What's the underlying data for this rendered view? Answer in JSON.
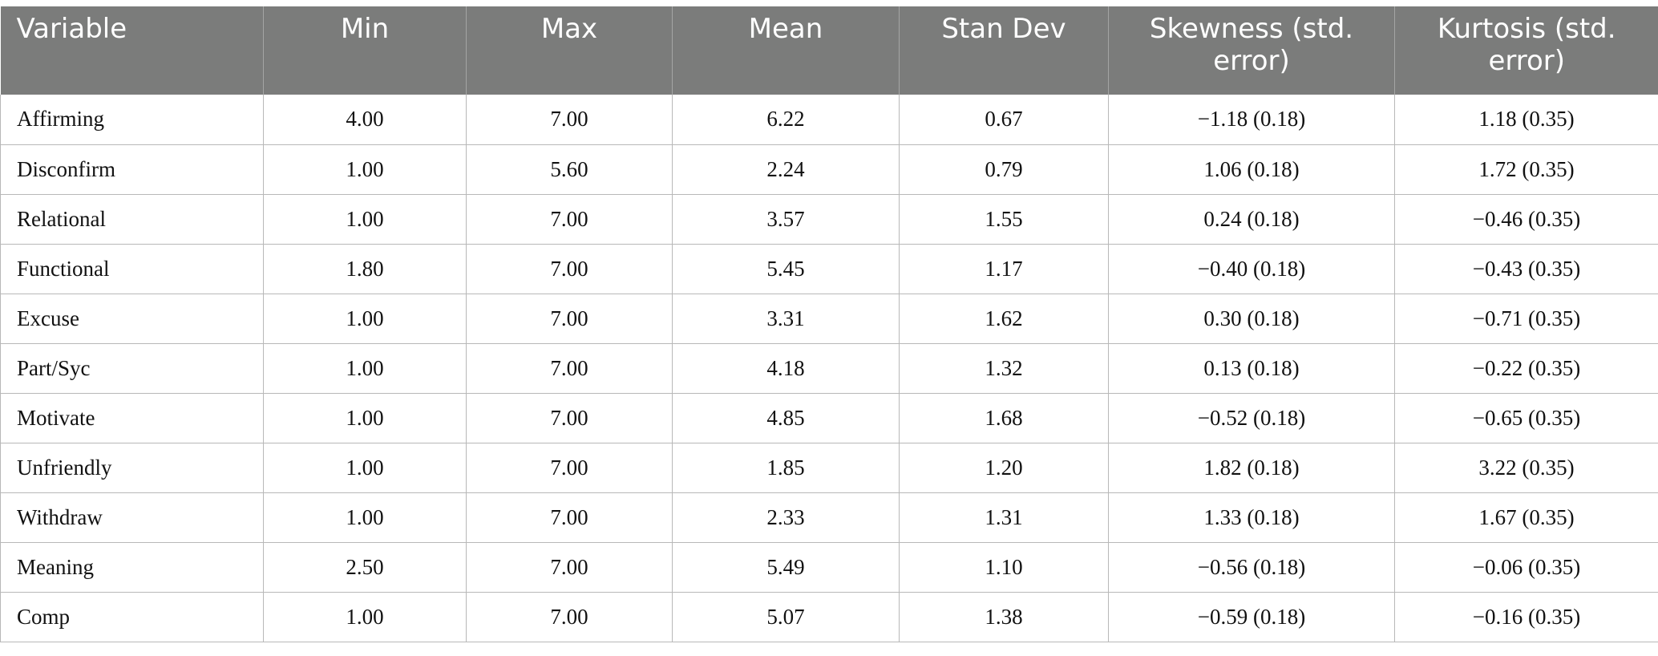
{
  "table": {
    "headers": [
      "Variable",
      "Min",
      "Max",
      "Mean",
      "Stan Dev",
      "Skewness (std. error)",
      "Kurtosis (std. error)"
    ],
    "rows": [
      [
        "Affirming",
        "4.00",
        "7.00",
        "6.22",
        "0.67",
        "−1.18 (0.18)",
        "1.18 (0.35)"
      ],
      [
        "Disconfirm",
        "1.00",
        "5.60",
        "2.24",
        "0.79",
        "1.06 (0.18)",
        "1.72 (0.35)"
      ],
      [
        "Relational",
        "1.00",
        "7.00",
        "3.57",
        "1.55",
        "0.24 (0.18)",
        "−0.46 (0.35)"
      ],
      [
        "Functional",
        "1.80",
        "7.00",
        "5.45",
        "1.17",
        "−0.40 (0.18)",
        "−0.43 (0.35)"
      ],
      [
        "Excuse",
        "1.00",
        "7.00",
        "3.31",
        "1.62",
        "0.30 (0.18)",
        "−0.71 (0.35)"
      ],
      [
        "Part/Syc",
        "1.00",
        "7.00",
        "4.18",
        "1.32",
        "0.13 (0.18)",
        "−0.22 (0.35)"
      ],
      [
        "Motivate",
        "1.00",
        "7.00",
        "4.85",
        "1.68",
        "−0.52 (0.18)",
        "−0.65 (0.35)"
      ],
      [
        "Unfriendly",
        "1.00",
        "7.00",
        "1.85",
        "1.20",
        "1.82 (0.18)",
        "3.22 (0.35)"
      ],
      [
        "Withdraw",
        "1.00",
        "7.00",
        "2.33",
        "1.31",
        "1.33 (0.18)",
        "1.67 (0.35)"
      ],
      [
        "Meaning",
        "2.50",
        "7.00",
        "5.49",
        "1.10",
        "−0.56 (0.18)",
        "−0.06 (0.35)"
      ],
      [
        "Comp",
        "1.00",
        "7.00",
        "5.07",
        "1.38",
        "−0.59 (0.18)",
        "−0.16 (0.35)"
      ]
    ]
  }
}
